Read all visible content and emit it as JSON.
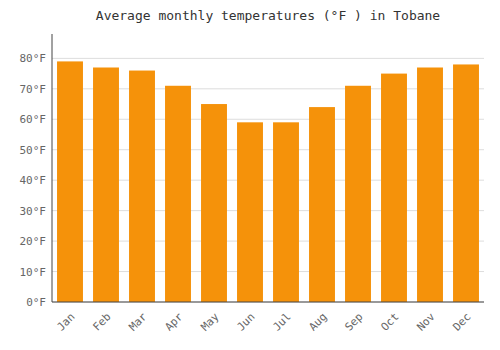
{
  "chart_data": {
    "type": "bar",
    "title": "Average monthly temperatures (°F ) in Tobane",
    "categories": [
      "Jan",
      "Feb",
      "Mar",
      "Apr",
      "May",
      "Jun",
      "Jul",
      "Aug",
      "Sep",
      "Oct",
      "Nov",
      "Dec"
    ],
    "values": [
      79,
      77,
      76,
      71,
      65,
      59,
      59,
      64,
      71,
      75,
      77,
      78
    ],
    "color": "#F5920A",
    "ylim": [
      0,
      88
    ],
    "yticks": [
      {
        "value": 0,
        "label": "0°F"
      },
      {
        "value": 10,
        "label": "10°F"
      },
      {
        "value": 20,
        "label": "20°F"
      },
      {
        "value": 30,
        "label": "30°F"
      },
      {
        "value": 40,
        "label": "40°F"
      },
      {
        "value": 50,
        "label": "50°F"
      },
      {
        "value": 60,
        "label": "60°F"
      },
      {
        "value": 70,
        "label": "70°F"
      },
      {
        "value": 80,
        "label": "80°F"
      }
    ],
    "grid": true
  }
}
